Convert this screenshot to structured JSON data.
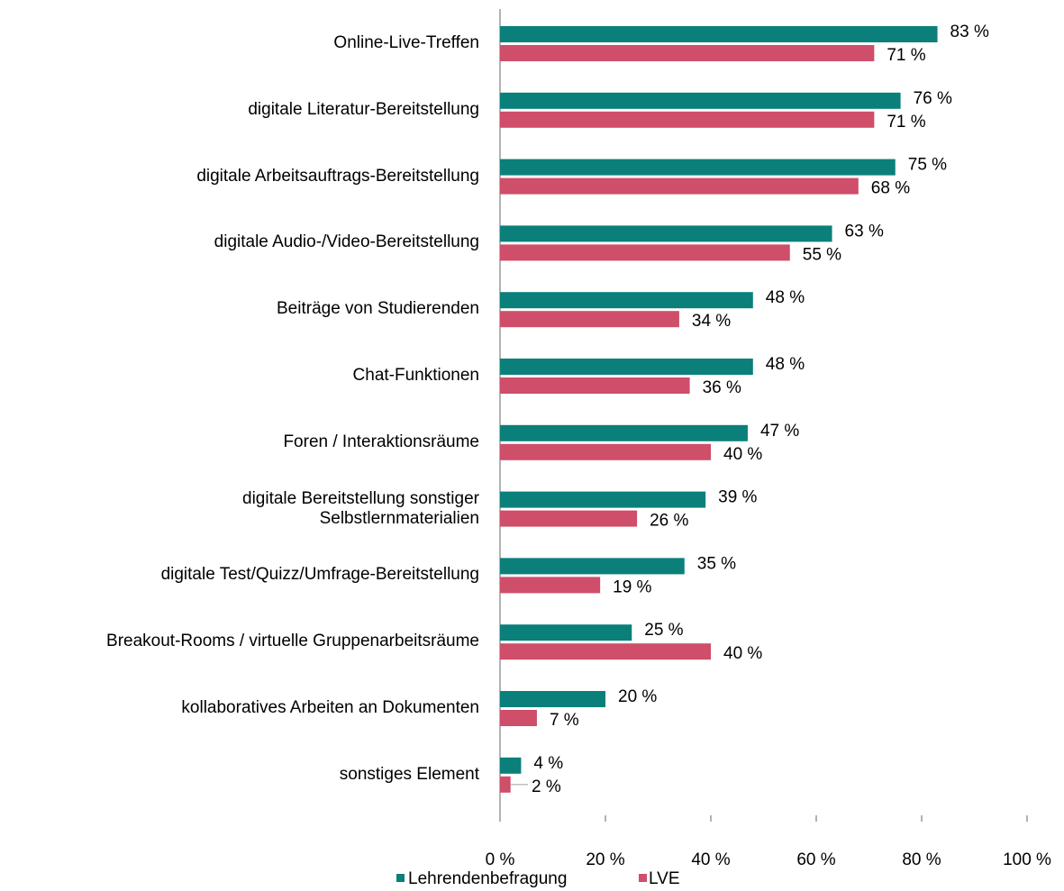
{
  "chart_data": {
    "type": "hbar",
    "categories": [
      "Online-Live-Treffen",
      "digitale Literatur-Bereitstellung",
      "digitale Arbeitsauftrags-Bereitstellung",
      "digitale Audio-/Video-Bereitstellung",
      "Beiträge von Studierenden",
      "Chat-Funktionen",
      "Foren / Interaktionsräume",
      "digitale Bereitstellung sonstiger\nSelbstlernmaterialien",
      "digitale Test/Quizz/Umfrage-Bereitstellung",
      "Breakout-Rooms / virtuelle Gruppenarbeitsräume",
      "kollaboratives Arbeiten an Dokumenten",
      "sonstiges Element"
    ],
    "series": [
      {
        "name": "Lehrendenbefragung",
        "color": "#0b7f7a",
        "values": [
          83,
          76,
          75,
          63,
          48,
          48,
          47,
          39,
          35,
          25,
          20,
          4
        ],
        "value_labels": [
          "83 %",
          "76 %",
          "75 %",
          "63 %",
          "48 %",
          "48 %",
          "47 %",
          "39 %",
          "35 %",
          "25 %",
          "20 %",
          "4 %"
        ]
      },
      {
        "name": "LVE",
        "color": "#cf4e6a",
        "values": [
          71,
          71,
          68,
          55,
          34,
          36,
          40,
          26,
          19,
          40,
          7,
          2
        ],
        "value_labels": [
          "71 %",
          "71 %",
          "68 %",
          "55 %",
          "34 %",
          "36 %",
          "40 %",
          "26 %",
          "19 %",
          "40 %",
          "7 %",
          "2 %"
        ]
      }
    ],
    "xlim": [
      0,
      100
    ],
    "xticks": [
      {
        "value": 0,
        "label": "0 %"
      },
      {
        "value": 20,
        "label": "20 %"
      },
      {
        "value": 40,
        "label": "40 %"
      },
      {
        "value": 60,
        "label": "60 %"
      },
      {
        "value": 80,
        "label": "80 %"
      },
      {
        "value": 100,
        "label": "100 %"
      }
    ],
    "legend": "bottom"
  }
}
